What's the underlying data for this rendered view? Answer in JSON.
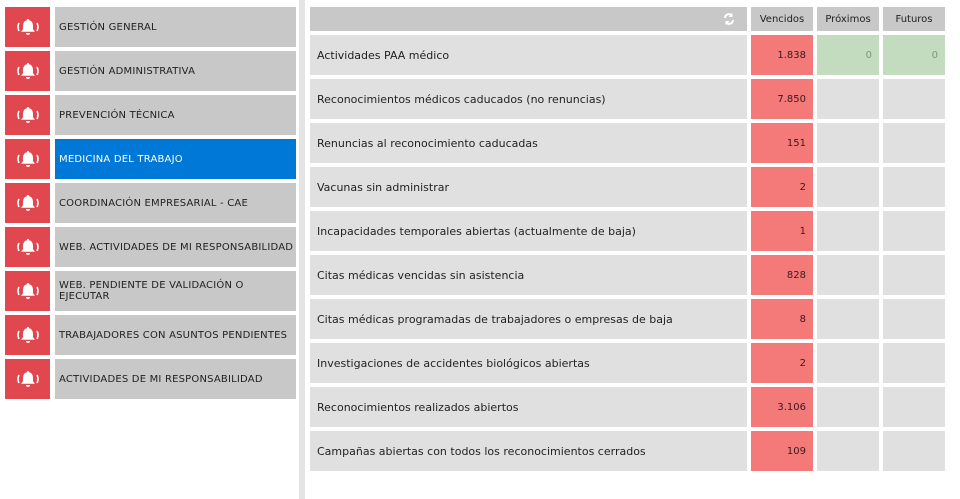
{
  "sidebar": {
    "items": [
      {
        "label": "GESTIÓN GENERAL",
        "active": false
      },
      {
        "label": "GESTIÓN ADMINISTRATIVA",
        "active": false
      },
      {
        "label": "PREVENCIÓN TÉCNICA",
        "active": false
      },
      {
        "label": "MEDICINA DEL TRABAJO",
        "active": true
      },
      {
        "label": "COORDINACIÓN EMPRESARIAL - CAE",
        "active": false
      },
      {
        "label": "WEB. ACTIVIDADES DE MI RESPONSABILIDAD",
        "active": false
      },
      {
        "label": "WEB. PENDIENTE DE VALIDACIÓN O EJECUTAR",
        "active": false
      },
      {
        "label": "TRABAJADORES CON ASUNTOS PENDIENTES",
        "active": false
      },
      {
        "label": "ACTIVIDADES DE MI RESPONSABILIDAD",
        "active": false
      }
    ],
    "icon": "bell-ringing-icon"
  },
  "table": {
    "refresh_icon": "refresh-icon",
    "columns": [
      "Vencidos",
      "Próximos",
      "Futuros"
    ],
    "rows": [
      {
        "label": "Actividades PAA médico",
        "vencidos": "1.838",
        "proximos": "0",
        "futuros": "0"
      },
      {
        "label": "Reconocimientos médicos caducados (no renuncias)",
        "vencidos": "7.850",
        "proximos": "",
        "futuros": ""
      },
      {
        "label": "Renuncias al reconocimiento caducadas",
        "vencidos": "151",
        "proximos": "",
        "futuros": ""
      },
      {
        "label": "Vacunas sin administrar",
        "vencidos": "2",
        "proximos": "",
        "futuros": ""
      },
      {
        "label": "Incapacidades temporales abiertas (actualmente de baja)",
        "vencidos": "1",
        "proximos": "",
        "futuros": ""
      },
      {
        "label": "Citas médicas vencidas sin asistencia",
        "vencidos": "828",
        "proximos": "",
        "futuros": ""
      },
      {
        "label": "Citas médicas programadas de trabajadores o empresas de baja",
        "vencidos": "8",
        "proximos": "",
        "futuros": ""
      },
      {
        "label": "Investigaciones de accidentes biológicos abiertas",
        "vencidos": "2",
        "proximos": "",
        "futuros": ""
      },
      {
        "label": "Reconocimientos realizados abiertos",
        "vencidos": "3.106",
        "proximos": "",
        "futuros": ""
      },
      {
        "label": "Campañas abiertas con todos los reconocimientos cerrados",
        "vencidos": "109",
        "proximos": "",
        "futuros": ""
      }
    ]
  },
  "colors": {
    "alert_red": "#e0474f",
    "overdue": "#f47a7a",
    "ok_green": "#c3dcc0",
    "selected": "#0078d7"
  }
}
